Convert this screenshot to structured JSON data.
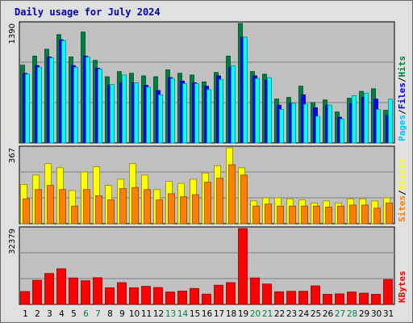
{
  "chart_data": {
    "type": "bar",
    "title": "Daily usage for July 2024",
    "categories": [
      "1",
      "2",
      "3",
      "4",
      "5",
      "6",
      "7",
      "8",
      "9",
      "10",
      "11",
      "12",
      "13",
      "14",
      "15",
      "16",
      "17",
      "18",
      "19",
      "20",
      "21",
      "22",
      "23",
      "24",
      "25",
      "26",
      "27",
      "28",
      "29",
      "30",
      "31"
    ],
    "weekend_days": [
      "6",
      "7",
      "13",
      "14",
      "20",
      "21",
      "27",
      "28"
    ],
    "panels": [
      {
        "name": "pages-files-hits",
        "ymax_label": "1390",
        "ymax": 1390,
        "side_label": [
          "Pages",
          "/",
          "Files",
          "/",
          "Hits"
        ],
        "series": [
          {
            "name": "Hits",
            "color": "#008040",
            "values": [
              905,
              1010,
              1090,
              1260,
              1000,
              1290,
              960,
              770,
              830,
              810,
              780,
              770,
              850,
              810,
              790,
              710,
              820,
              1010,
              1390,
              830,
              800,
              510,
              530,
              660,
              470,
              500,
              360,
              520,
              600,
              630,
              380
            ]
          },
          {
            "name": "Files",
            "color": "#0000ff",
            "values": [
              810,
              900,
              1000,
              1200,
              900,
              1010,
              870,
              670,
              700,
              700,
              670,
              610,
              760,
              720,
              700,
              660,
              780,
              880,
              1230,
              780,
              730,
              440,
              460,
              560,
              410,
              440,
              300,
              460,
              530,
              510,
              320
            ]
          },
          {
            "name": "Pages",
            "color": "#00ffff",
            "values": [
              800,
              880,
              990,
              1190,
              880,
              1000,
              860,
              680,
              790,
              700,
              650,
              560,
              750,
              690,
              690,
              620,
              740,
              900,
              1230,
              750,
              760,
              390,
              460,
              450,
              310,
              440,
              280,
              550,
              580,
              390,
              510
            ]
          }
        ]
      },
      {
        "name": "sites-visits",
        "ymax_label": "367",
        "ymax": 367,
        "side_label": [
          "Sites",
          "/",
          "Visits"
        ],
        "series": [
          {
            "name": "Visits",
            "color": "#ffff00",
            "values": [
              190,
              235,
              290,
              270,
              160,
              250,
              275,
              185,
              215,
              290,
              235,
              165,
              205,
              195,
              215,
              245,
              280,
              367,
              270,
              110,
              125,
              125,
              120,
              115,
              100,
              110,
              100,
              120,
              120,
              110,
              125
            ]
          },
          {
            "name": "Sites",
            "color": "#ff8000",
            "values": [
              120,
              165,
              185,
              165,
              85,
              165,
              135,
              115,
              170,
              175,
              165,
              115,
              145,
              130,
              140,
              200,
              220,
              285,
              235,
              85,
              95,
              85,
              85,
              85,
              85,
              80,
              85,
              90,
              90,
              75,
              100
            ]
          }
        ]
      },
      {
        "name": "kbytes",
        "ymax_label": "32379",
        "ymax": 32379,
        "side_label": [
          "KBytes"
        ],
        "series": [
          {
            "name": "KBytes",
            "color": "#ff0000",
            "values": [
              5500,
              10300,
              13200,
              15200,
              11300,
              10100,
              11400,
              7100,
              9300,
              7100,
              7700,
              7200,
              5300,
              5700,
              6800,
              4400,
              8200,
              9300,
              32379,
              11300,
              8700,
              5400,
              5600,
              5600,
              7900,
              4300,
              4500,
              5300,
              4800,
              4300,
              10600
            ]
          }
        ]
      }
    ]
  }
}
